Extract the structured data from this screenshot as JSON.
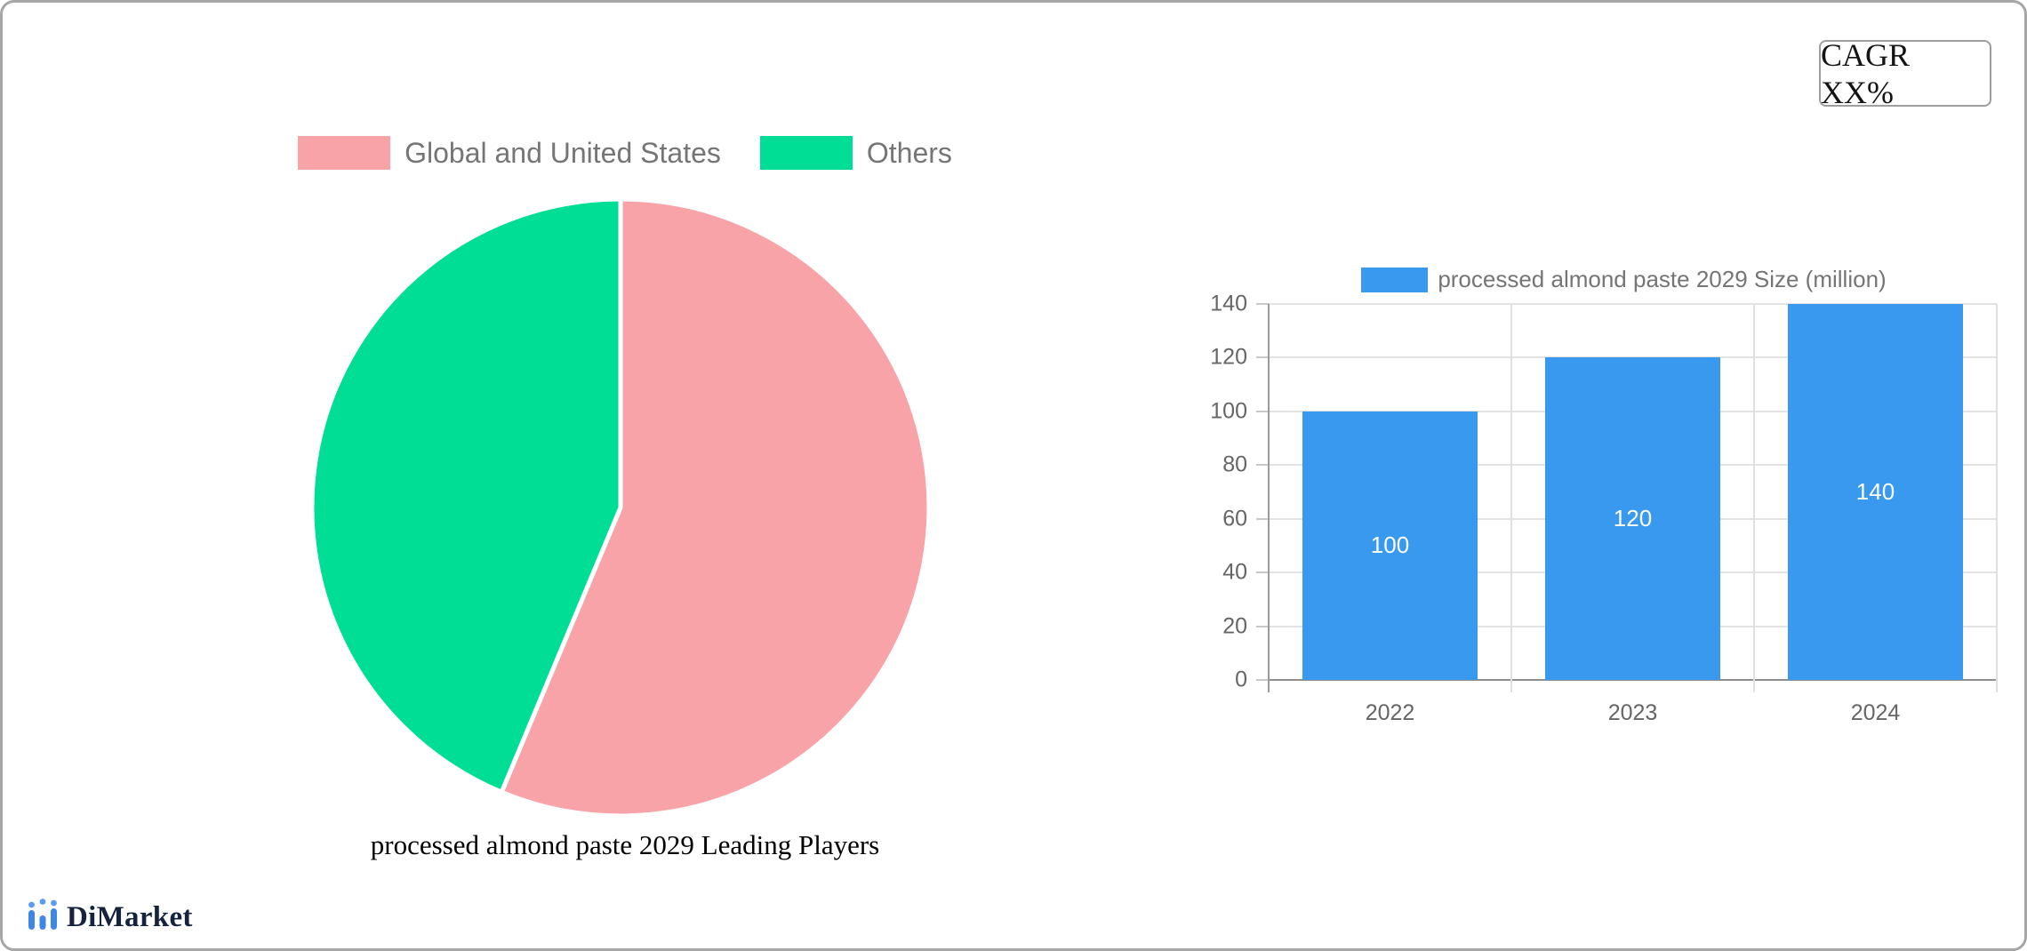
{
  "card": {
    "cagr_label": "CAGR XX%"
  },
  "branding": {
    "name": "DiMarket",
    "icon": "bar-chart-logo-icon",
    "text_color": "#16233f",
    "icon_bar_color": "#3f87e6",
    "icon_dot_color": "#5b9bf2"
  },
  "chart_data": [
    {
      "type": "pie",
      "title": "processed almond paste 2029 Leading Players",
      "legend_position": "top",
      "start_angle": "12-oclock-clockwise",
      "divider_color": "#ffffff",
      "slices": [
        {
          "label": "Global and United States",
          "value_percent": 56.3,
          "color": "#f8a3a8"
        },
        {
          "label": "Others",
          "value_percent": 43.7,
          "color": "#00de95"
        }
      ]
    },
    {
      "type": "bar",
      "legend": "processed almond paste 2029 Size (million)",
      "legend_position": "top",
      "categories": [
        "2022",
        "2023",
        "2024"
      ],
      "values": [
        100,
        120,
        140
      ],
      "bar_color": "#3899ee",
      "value_label_color": "#ffffff",
      "ylim": [
        0,
        140
      ],
      "ytick_step": 20,
      "yticks": [
        0,
        20,
        40,
        60,
        80,
        100,
        120,
        140
      ],
      "grid": true
    }
  ]
}
